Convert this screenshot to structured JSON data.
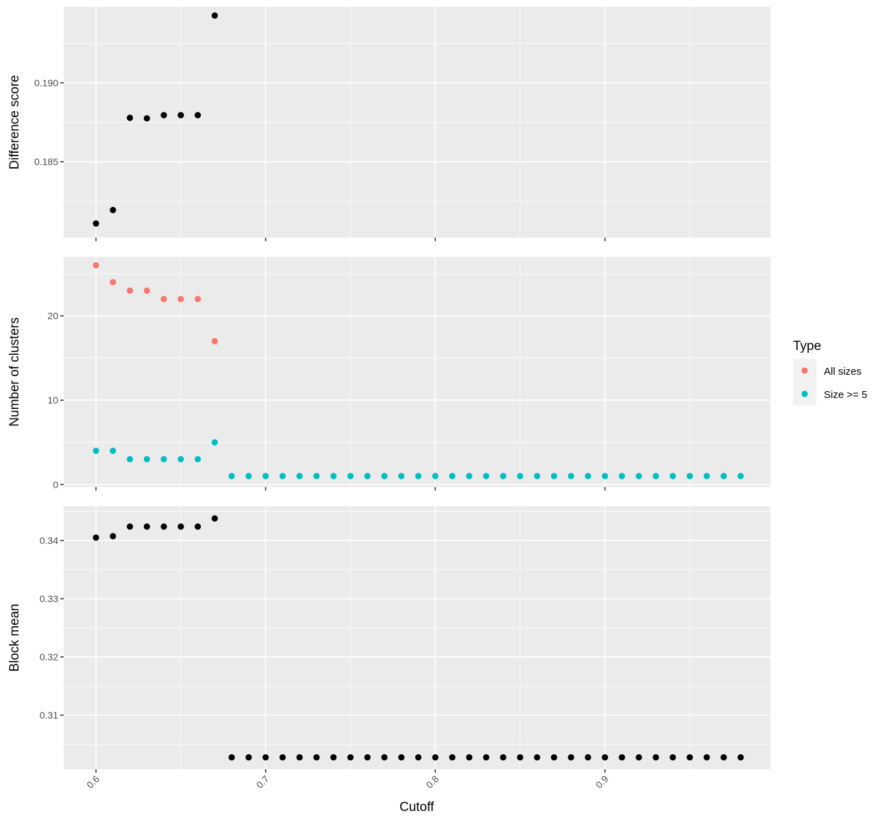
{
  "chart_data": {
    "type": "scatter",
    "xlabel": "Cutoff",
    "x_ticks": [
      "0.6",
      "0.7",
      "0.8",
      "0.9"
    ],
    "x_tick_values": [
      0.6,
      0.7,
      0.8,
      0.9
    ],
    "xlim": [
      0.581,
      0.9975
    ],
    "grid": true,
    "legend": {
      "title": "Type",
      "position": "right",
      "entries": [
        {
          "label": "All sizes",
          "color": "#F8766D"
        },
        {
          "label": "Size >= 5",
          "color": "#00BFC4"
        }
      ]
    },
    "panels": [
      {
        "name": "difference-score",
        "ylabel": "Difference score",
        "ylim": [
          0.1802,
          0.1948
        ],
        "y_ticks": [
          "0.185",
          "0.190"
        ],
        "y_tick_values": [
          0.185,
          0.19
        ],
        "series": [
          {
            "color": "#000000",
            "points": [
              [
                0.6,
                0.1811
              ],
              [
                0.61,
                0.18195
              ],
              [
                0.62,
                0.18778
              ],
              [
                0.63,
                0.18775
              ],
              [
                0.64,
                0.18795
              ],
              [
                0.65,
                0.18795
              ],
              [
                0.66,
                0.18795
              ],
              [
                0.67,
                0.19425
              ]
            ]
          }
        ]
      },
      {
        "name": "number-of-clusters",
        "ylabel": "Number of clusters",
        "ylim": [
          -0.3,
          27.0
        ],
        "y_ticks": [
          "0",
          "10",
          "20"
        ],
        "y_tick_values": [
          0,
          10,
          20
        ],
        "series": [
          {
            "name": "All sizes",
            "color": "#F8766D",
            "points": [
              [
                0.6,
                26
              ],
              [
                0.61,
                24
              ],
              [
                0.62,
                23
              ],
              [
                0.63,
                23
              ],
              [
                0.64,
                22
              ],
              [
                0.65,
                22
              ],
              [
                0.66,
                22
              ],
              [
                0.67,
                17
              ]
            ]
          },
          {
            "name": "Size >= 5",
            "color": "#00BFC4",
            "points": [
              [
                0.6,
                4
              ],
              [
                0.61,
                4
              ],
              [
                0.62,
                3
              ],
              [
                0.63,
                3
              ],
              [
                0.64,
                3
              ],
              [
                0.65,
                3
              ],
              [
                0.66,
                3
              ],
              [
                0.67,
                5
              ],
              [
                0.68,
                1
              ],
              [
                0.69,
                1
              ],
              [
                0.7,
                1
              ],
              [
                0.71,
                1
              ],
              [
                0.72,
                1
              ],
              [
                0.73,
                1
              ],
              [
                0.74,
                1
              ],
              [
                0.75,
                1
              ],
              [
                0.76,
                1
              ],
              [
                0.77,
                1
              ],
              [
                0.78,
                1
              ],
              [
                0.79,
                1
              ],
              [
                0.8,
                1
              ],
              [
                0.81,
                1
              ],
              [
                0.82,
                1
              ],
              [
                0.83,
                1
              ],
              [
                0.84,
                1
              ],
              [
                0.85,
                1
              ],
              [
                0.86,
                1
              ],
              [
                0.87,
                1
              ],
              [
                0.88,
                1
              ],
              [
                0.89,
                1
              ],
              [
                0.9,
                1
              ],
              [
                0.91,
                1
              ],
              [
                0.92,
                1
              ],
              [
                0.93,
                1
              ],
              [
                0.94,
                1
              ],
              [
                0.95,
                1
              ],
              [
                0.96,
                1
              ],
              [
                0.97,
                1
              ],
              [
                0.98,
                1
              ]
            ]
          }
        ]
      },
      {
        "name": "block-mean",
        "ylabel": "Block mean",
        "ylim": [
          0.3007,
          0.3459
        ],
        "y_ticks": [
          "0.31",
          "0.32",
          "0.33",
          "0.34"
        ],
        "y_tick_values": [
          0.31,
          0.32,
          0.33,
          0.34
        ],
        "series": [
          {
            "color": "#000000",
            "points": [
              [
                0.6,
                0.3405
              ],
              [
                0.61,
                0.34075
              ],
              [
                0.62,
                0.3424
              ],
              [
                0.63,
                0.3424
              ],
              [
                0.64,
                0.3424
              ],
              [
                0.65,
                0.3424
              ],
              [
                0.66,
                0.3424
              ],
              [
                0.67,
                0.3438
              ],
              [
                0.68,
                0.30275
              ],
              [
                0.69,
                0.30275
              ],
              [
                0.7,
                0.30275
              ],
              [
                0.71,
                0.30275
              ],
              [
                0.72,
                0.30275
              ],
              [
                0.73,
                0.30275
              ],
              [
                0.74,
                0.30275
              ],
              [
                0.75,
                0.30275
              ],
              [
                0.76,
                0.30275
              ],
              [
                0.77,
                0.30275
              ],
              [
                0.78,
                0.30275
              ],
              [
                0.79,
                0.30275
              ],
              [
                0.8,
                0.30275
              ],
              [
                0.81,
                0.30275
              ],
              [
                0.82,
                0.30275
              ],
              [
                0.83,
                0.30275
              ],
              [
                0.84,
                0.30275
              ],
              [
                0.85,
                0.30275
              ],
              [
                0.86,
                0.30275
              ],
              [
                0.87,
                0.30275
              ],
              [
                0.88,
                0.30275
              ],
              [
                0.89,
                0.30275
              ],
              [
                0.9,
                0.30275
              ],
              [
                0.91,
                0.30275
              ],
              [
                0.92,
                0.30275
              ],
              [
                0.93,
                0.30275
              ],
              [
                0.94,
                0.30275
              ],
              [
                0.95,
                0.30275
              ],
              [
                0.96,
                0.30275
              ],
              [
                0.97,
                0.30275
              ],
              [
                0.98,
                0.30275
              ]
            ]
          }
        ]
      }
    ]
  }
}
